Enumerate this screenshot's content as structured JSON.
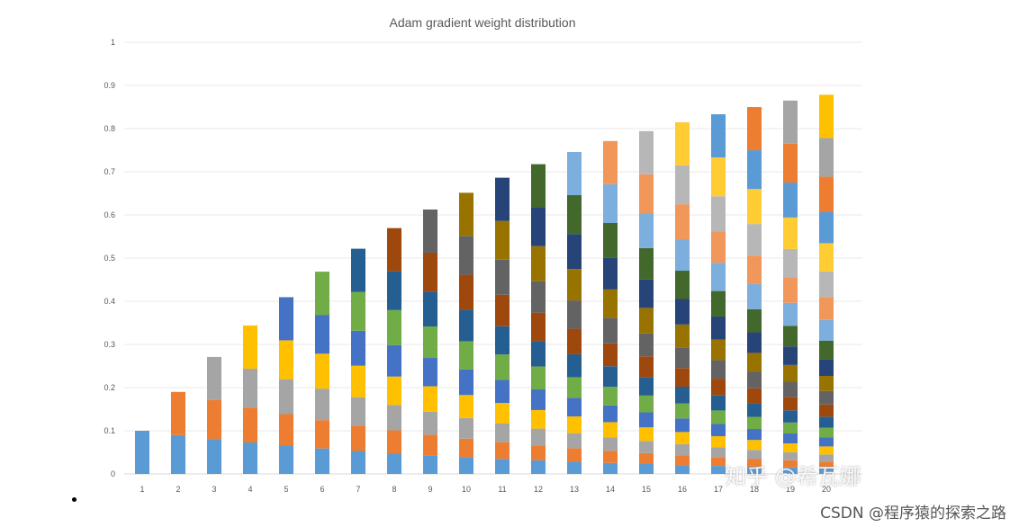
{
  "chart_data": {
    "type": "bar",
    "stacked": true,
    "title": "Adam gradient weight distribution",
    "xlabel": "",
    "ylabel": "",
    "ylim": [
      0,
      1
    ],
    "yticks": [
      "0",
      "0.1",
      "0.2",
      "0.3",
      "0.4",
      "0.5",
      "0.6",
      "0.7",
      "0.8",
      "0.9",
      "1"
    ],
    "grid": true,
    "legend": "none",
    "categories": [
      "1",
      "2",
      "3",
      "4",
      "5",
      "6",
      "7",
      "8",
      "9",
      "10",
      "11",
      "12",
      "13",
      "14",
      "15",
      "16",
      "17",
      "18",
      "19",
      "20"
    ],
    "beta": 0.9,
    "note_values": "Bar k is stacked from segments 0.1*0.9^(k-j) for j=1..k; totals 1-0.9^k",
    "totals": [
      0.1,
      0.19,
      0.271,
      0.344,
      0.41,
      0.469,
      0.522,
      0.57,
      0.613,
      0.651,
      0.686,
      0.718,
      0.746,
      0.771,
      0.794,
      0.815,
      0.833,
      0.85,
      0.865,
      0.878
    ],
    "colors": [
      "#5B9BD5",
      "#ED7D31",
      "#A5A5A5",
      "#FFC000",
      "#4472C4",
      "#70AD47",
      "#255E91",
      "#9E480E",
      "#636363",
      "#997300",
      "#264478",
      "#43682B",
      "#7CAFDD",
      "#F1975A",
      "#B7B7B7",
      "#FFCD33"
    ]
  },
  "watermarks": {
    "zhihu": "知乎 @希瓦娜",
    "csdn": "CSDN @程序猿的探索之路"
  }
}
